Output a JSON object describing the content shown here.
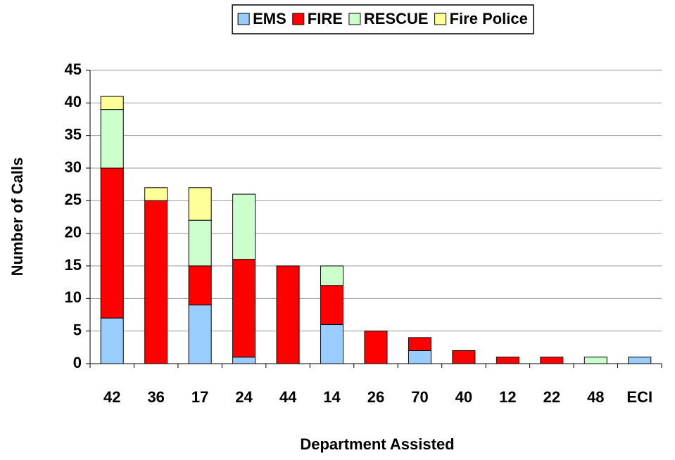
{
  "chart_data": {
    "type": "stacked_bar",
    "x_label": "Department Assisted",
    "y_label": "Number of Calls",
    "categories": [
      "42",
      "36",
      "17",
      "24",
      "44",
      "14",
      "26",
      "70",
      "40",
      "12",
      "22",
      "48",
      "ECI"
    ],
    "series": [
      {
        "name": "EMS",
        "color": "#99ccff",
        "values": [
          7,
          0,
          9,
          1,
          0,
          6,
          0,
          2,
          0,
          0,
          0,
          0,
          1
        ]
      },
      {
        "name": "FIRE",
        "color": "#ff0000",
        "values": [
          23,
          25,
          6,
          15,
          15,
          6,
          5,
          2,
          2,
          1,
          1,
          0,
          0
        ]
      },
      {
        "name": "RESCUE",
        "color": "#ccffcc",
        "values": [
          9,
          0,
          7,
          10,
          0,
          3,
          0,
          0,
          0,
          0,
          0,
          1,
          0
        ]
      },
      {
        "name": "Fire Police",
        "color": "#ffff99",
        "values": [
          2,
          2,
          5,
          0,
          0,
          0,
          0,
          0,
          0,
          0,
          0,
          0,
          0
        ]
      }
    ],
    "ylim": [
      0,
      45
    ],
    "yticks": [
      0,
      5,
      10,
      15,
      20,
      25,
      30,
      35,
      40,
      45
    ],
    "grid": true,
    "legend": "top"
  }
}
